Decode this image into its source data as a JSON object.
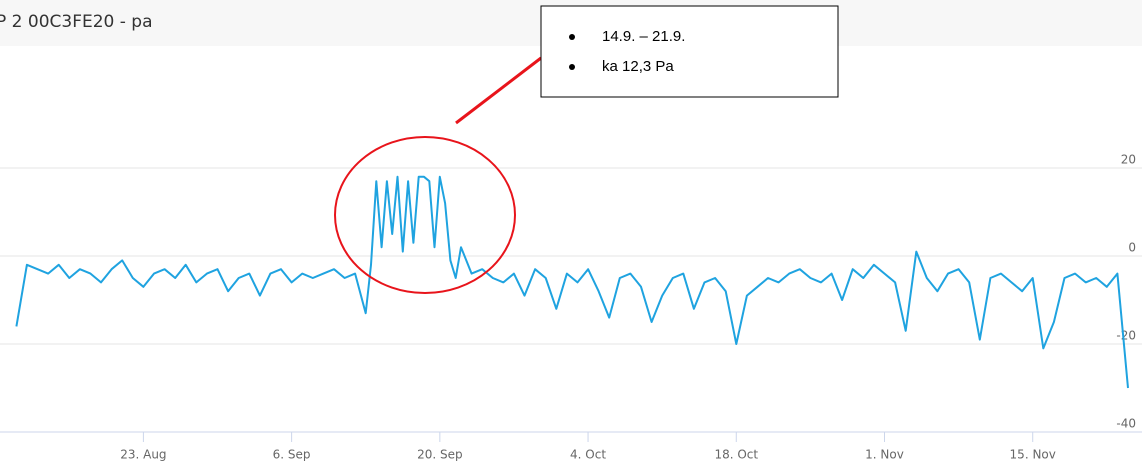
{
  "chart_data": {
    "type": "line",
    "title": "P 2 00C3FE20 - pa",
    "annotation": {
      "items": [
        "14.9. – 21.9.",
        "ka 12,3 Pa"
      ]
    },
    "x": [
      10,
      11,
      12,
      13,
      14,
      15,
      16,
      17,
      18,
      19,
      20,
      21,
      22,
      23,
      24,
      25,
      26,
      27,
      28,
      29,
      30,
      31,
      32,
      33,
      34,
      35,
      36,
      37,
      38,
      39,
      40,
      41,
      42,
      43,
      43.5,
      44,
      44.5,
      45,
      45.5,
      46,
      46.5,
      47,
      47.5,
      48,
      48.5,
      49,
      49.5,
      50,
      50.5,
      51,
      51.5,
      52,
      53,
      54,
      55,
      56,
      57,
      58,
      59,
      60,
      61,
      62,
      63,
      64,
      65,
      66,
      67,
      68,
      69,
      70,
      71,
      72,
      73,
      74,
      75,
      76,
      77,
      78,
      79,
      80,
      81,
      82,
      83,
      84,
      85,
      86,
      87,
      88,
      89,
      90,
      91,
      92,
      93,
      94,
      95,
      96,
      97,
      98,
      99,
      100,
      101,
      102,
      103,
      104,
      105,
      106,
      107,
      108,
      109,
      110,
      111,
      112,
      113,
      114,
      115
    ],
    "series": [
      {
        "name": "pa",
        "color": "#1fa3e0",
        "values": [
          -16,
          -2,
          -3,
          -4,
          -2,
          -5,
          -3,
          -4,
          -6,
          -3,
          -1,
          -5,
          -7,
          -4,
          -3,
          -5,
          -2,
          -6,
          -4,
          -3,
          -8,
          -5,
          -4,
          -9,
          -4,
          -3,
          -6,
          -4,
          -5,
          -4,
          -3,
          -5,
          -4,
          -13,
          -2,
          17,
          2,
          17,
          5,
          18,
          1,
          17,
          3,
          18,
          18,
          17,
          2,
          18,
          12,
          -1,
          -5,
          2,
          -4,
          -3,
          -5,
          -6,
          -4,
          -9,
          -3,
          -5,
          -12,
          -4,
          -6,
          -3,
          -8,
          -14,
          -5,
          -4,
          -7,
          -15,
          -9,
          -5,
          -4,
          -12,
          -6,
          -5,
          -8,
          -20,
          -9,
          -7,
          -5,
          -6,
          -4,
          -3,
          -5,
          -6,
          -4,
          -10,
          -3,
          -5,
          -2,
          -4,
          -6,
          -17,
          1,
          -5,
          -8,
          -4,
          -3,
          -6,
          -19,
          -5,
          -4,
          -6,
          -8,
          -5,
          -21,
          -15,
          -5,
          -4,
          -6,
          -5,
          -7,
          -4,
          -30
        ]
      }
    ],
    "xlim": [
      9.4,
      115
    ],
    "xticks": [
      {
        "value": 22,
        "label": "23. Aug"
      },
      {
        "value": 36,
        "label": "6. Sep"
      },
      {
        "value": 50,
        "label": "20. Sep"
      },
      {
        "value": 64,
        "label": "4. Oct"
      },
      {
        "value": 78,
        "label": "18. Oct"
      },
      {
        "value": 92,
        "label": "1. Nov"
      },
      {
        "value": 106,
        "label": "15. Nov"
      }
    ],
    "ylim": [
      -40,
      40
    ],
    "yticks": [
      -40,
      -20,
      0,
      20
    ],
    "grid": true
  }
}
